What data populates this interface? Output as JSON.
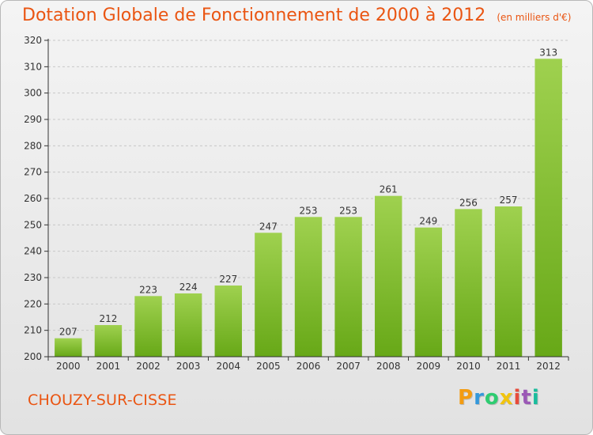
{
  "header": {
    "title": "Dotation Globale de Fonctionnement de 2000 à 2012",
    "subtitle": "(en milliers d'€)"
  },
  "footer": {
    "commune": "CHOUZY-SUR-CISSE",
    "logo_text": "Proxiti",
    "logo_letters": [
      {
        "ch": "P",
        "color": "#f39c12"
      },
      {
        "ch": "r",
        "color": "#3498db"
      },
      {
        "ch": "o",
        "color": "#2ecc71"
      },
      {
        "ch": "x",
        "color": "#f1c40f"
      },
      {
        "ch": "i",
        "color": "#e74c3c"
      },
      {
        "ch": "t",
        "color": "#9b59b6"
      },
      {
        "ch": "i",
        "color": "#1abc9c"
      }
    ]
  },
  "colors": {
    "title": "#ea5512",
    "bar_top": "#9fd14f",
    "bar_bottom": "#67a817",
    "axis": "#333333",
    "grid": "#c8c8c8"
  },
  "chart_data": {
    "type": "bar",
    "title": "Dotation Globale de Fonctionnement de 2000 à 2012",
    "subtitle": "(en milliers d'€)",
    "xlabel": "",
    "ylabel": "",
    "categories": [
      "2000",
      "2001",
      "2002",
      "2003",
      "2004",
      "2005",
      "2006",
      "2007",
      "2008",
      "2009",
      "2010",
      "2011",
      "2012"
    ],
    "values": [
      207,
      212,
      223,
      224,
      227,
      247,
      253,
      253,
      261,
      249,
      256,
      257,
      313
    ],
    "ylim": [
      200,
      320
    ],
    "yticks": [
      200,
      210,
      220,
      230,
      240,
      250,
      260,
      270,
      280,
      290,
      300,
      310,
      320
    ],
    "grid": true,
    "data_labels": true
  }
}
